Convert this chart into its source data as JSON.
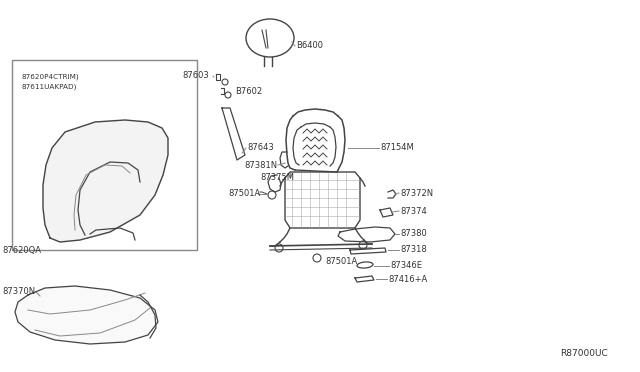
{
  "background_color": "#ffffff",
  "line_color": "#444444",
  "label_color": "#333333",
  "diagram_label": "R87000UC",
  "box_labels": [
    "87620P4CTRIM)",
    "87611UAKPAD)"
  ],
  "figsize": [
    6.4,
    3.72
  ],
  "dpi": 100
}
